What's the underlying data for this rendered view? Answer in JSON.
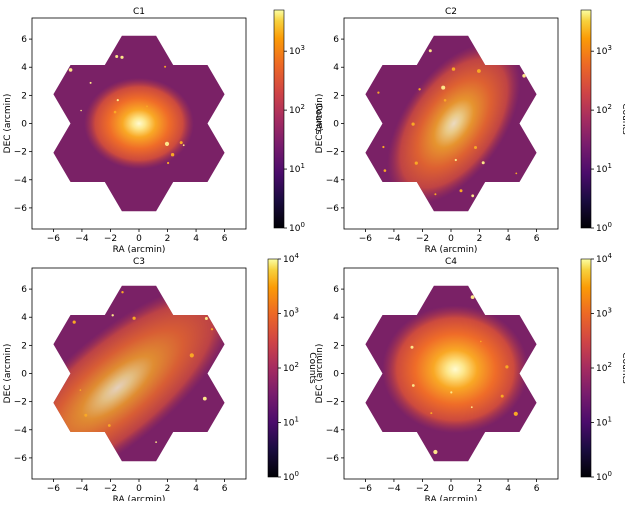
{
  "chart_data": [
    {
      "type": "heatmap",
      "title": "C1",
      "xlabel": "RA (arcmin)",
      "ylabel": "DEC (arcmin)",
      "colorbar_label": "Counts",
      "x_ticks": [
        -6,
        -4,
        -2,
        0,
        2,
        4,
        6
      ],
      "y_ticks": [
        -6,
        -4,
        -2,
        0,
        2,
        4,
        6
      ],
      "xlim": [
        -7.5,
        7.5
      ],
      "ylim": [
        -7.5,
        7.5
      ],
      "colorbar_ticks": [
        "10^0",
        "10^1",
        "10^2",
        "10^3"
      ],
      "colorbar_range": [
        1,
        5000
      ],
      "colorscale": "log",
      "colormap": "inferno",
      "footprint": "seven-hexagon mosaic",
      "emission": {
        "center": [
          0.0,
          0.0
        ],
        "core_level": 1.0,
        "major_arcmin": 2.4,
        "minor_arcmin": 2.0,
        "angle_deg": 0
      }
    },
    {
      "type": "heatmap",
      "title": "C2",
      "xlabel": "RA (arcmin)",
      "ylabel": "DEC (arcmin)",
      "colorbar_label": "Counts",
      "x_ticks": [
        -6,
        -4,
        -2,
        0,
        2,
        4,
        6
      ],
      "y_ticks": [
        -6,
        -4,
        -2,
        0,
        2,
        4,
        6
      ],
      "xlim": [
        -7.5,
        7.5
      ],
      "ylim": [
        -7.5,
        7.5
      ],
      "colorbar_ticks": [
        "10^0",
        "10^1",
        "10^2",
        "10^3"
      ],
      "colorbar_range": [
        1,
        5000
      ],
      "colorscale": "log",
      "colormap": "inferno",
      "footprint": "seven-hexagon mosaic",
      "emission": {
        "center": [
          0.2,
          0.0
        ],
        "core_level": 0.85,
        "major_arcmin": 4.0,
        "minor_arcmin": 2.2,
        "angle_deg": 55
      }
    },
    {
      "type": "heatmap",
      "title": "C3",
      "xlabel": "RA (arcmin)",
      "ylabel": "DEC (arcmin)",
      "colorbar_label": "Counts",
      "x_ticks": [
        -6,
        -4,
        -2,
        0,
        2,
        4,
        6
      ],
      "y_ticks": [
        -6,
        -4,
        -2,
        0,
        2,
        4,
        6
      ],
      "xlim": [
        -7.5,
        7.5
      ],
      "ylim": [
        -7.5,
        7.5
      ],
      "colorbar_ticks": [
        "10^0",
        "10^1",
        "10^2",
        "10^3",
        "10^4"
      ],
      "colorbar_range": [
        1,
        10000
      ],
      "colorscale": "log",
      "colormap": "inferno",
      "footprint": "seven-hexagon mosaic",
      "emission": {
        "center": [
          -1.5,
          -1.0
        ],
        "core_level": 0.8,
        "major_arcmin": 6.5,
        "minor_arcmin": 2.4,
        "angle_deg": 40
      }
    },
    {
      "type": "heatmap",
      "title": "C4",
      "xlabel": "RA (arcmin)",
      "ylabel": "DEC (arcmin)",
      "colorbar_label": "Counts",
      "x_ticks": [
        -6,
        -4,
        -2,
        0,
        2,
        4,
        6
      ],
      "y_ticks": [
        -6,
        -4,
        -2,
        0,
        2,
        4,
        6
      ],
      "xlim": [
        -7.5,
        7.5
      ],
      "ylim": [
        -7.5,
        7.5
      ],
      "colorbar_ticks": [
        "10^0",
        "10^1",
        "10^2",
        "10^3",
        "10^4"
      ],
      "colorbar_range": [
        1,
        10000
      ],
      "colorscale": "log",
      "colormap": "inferno",
      "footprint": "seven-hexagon mosaic",
      "emission": {
        "center": [
          0.3,
          0.3
        ],
        "core_level": 1.0,
        "major_arcmin": 3.2,
        "minor_arcmin": 2.8,
        "angle_deg": 0
      }
    }
  ]
}
